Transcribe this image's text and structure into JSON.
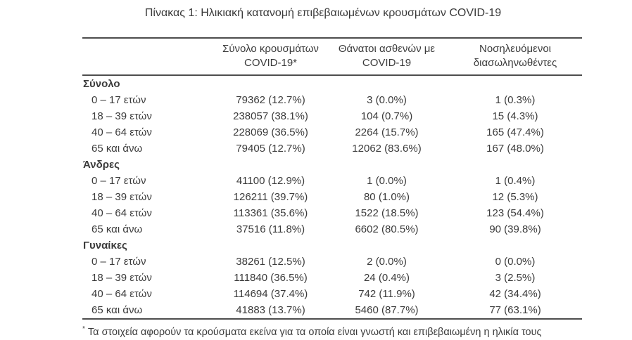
{
  "title": "Πίνακας 1: Ηλικιακή κατανομή επιβεβαιωμένων κρουσμάτων COVID-19",
  "columns": [
    {
      "line1": "Σύνολο κρουσμάτων",
      "line2": "COVID-19*"
    },
    {
      "line1": "Θάνατοι ασθενών με",
      "line2": "COVID-19"
    },
    {
      "line1": "Νοσηλευόμενοι",
      "line2": "διασωληνωθέντες"
    }
  ],
  "sections": [
    {
      "label": "Σύνολο",
      "rows": [
        {
          "age": "0 – 17 ετών",
          "cases": "79362 (12.7%)",
          "deaths": "3 (0.0%)",
          "intubated": "1 (0.3%)"
        },
        {
          "age": "18 – 39 ετών",
          "cases": "238057 (38.1%)",
          "deaths": "104 (0.7%)",
          "intubated": "15 (4.3%)"
        },
        {
          "age": "40 – 64 ετών",
          "cases": "228069 (36.5%)",
          "deaths": "2264 (15.7%)",
          "intubated": "165 (47.4%)"
        },
        {
          "age": "65 και άνω",
          "cases": "79405 (12.7%)",
          "deaths": "12062 (83.6%)",
          "intubated": "167 (48.0%)"
        }
      ]
    },
    {
      "label": "Άνδρες",
      "rows": [
        {
          "age": "0 – 17 ετών",
          "cases": "41100 (12.9%)",
          "deaths": "1 (0.0%)",
          "intubated": "1 (0.4%)"
        },
        {
          "age": "18 – 39 ετών",
          "cases": "126211 (39.7%)",
          "deaths": "80 (1.0%)",
          "intubated": "12 (5.3%)"
        },
        {
          "age": "40 – 64 ετών",
          "cases": "113361 (35.6%)",
          "deaths": "1522 (18.5%)",
          "intubated": "123 (54.4%)"
        },
        {
          "age": "65 και άνω",
          "cases": "37516 (11.8%)",
          "deaths": "6602 (80.5%)",
          "intubated": "90 (39.8%)"
        }
      ]
    },
    {
      "label": "Γυναίκες",
      "rows": [
        {
          "age": "0 – 17 ετών",
          "cases": "38261 (12.5%)",
          "deaths": "2 (0.0%)",
          "intubated": "0 (0.0%)"
        },
        {
          "age": "18 – 39 ετών",
          "cases": "111840 (36.5%)",
          "deaths": "24 (0.4%)",
          "intubated": "3 (2.5%)"
        },
        {
          "age": "40 – 64 ετών",
          "cases": "114694 (37.4%)",
          "deaths": "742 (11.9%)",
          "intubated": "42 (34.4%)"
        },
        {
          "age": "65 και άνω",
          "cases": "41883 (13.7%)",
          "deaths": "5460 (87.7%)",
          "intubated": "77 (63.1%)"
        }
      ]
    }
  ],
  "footnote": {
    "marker": "*",
    "text": "Τα στοιχεία αφορούν τα κρούσματα εκείνα για τα οποία είναι γνωστή και επιβεβαιωμένη η ηλικία τους"
  },
  "colors": {
    "text": "#3b3b3b",
    "border": "#4d4d4d",
    "background": "#ffffff"
  }
}
